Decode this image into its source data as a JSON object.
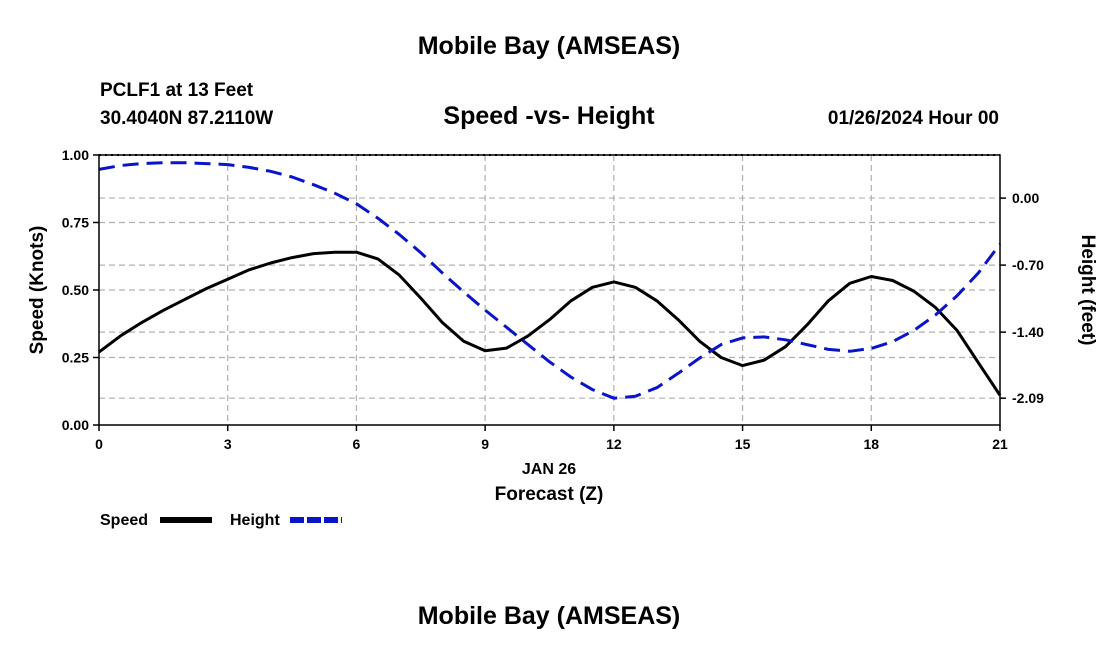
{
  "page": {
    "title": "Mobile Bay (AMSEAS)",
    "station_line1": "PCLF1 at 13 Feet",
    "station_line2": "30.4040N  87.2110W",
    "chart_title": "Speed -vs- Height",
    "timestamp": "01/26/2024 Hour 00",
    "date_label": "JAN 26",
    "footer_title": "Mobile Bay (AMSEAS)"
  },
  "legend": {
    "speed_label": "Speed",
    "height_label": "Height"
  },
  "colors": {
    "speed": "#000000",
    "height": "#0a14c8",
    "grid": "#b0b0b0"
  },
  "chart_data": {
    "type": "line",
    "title": "Speed -vs- Height",
    "xlabel": "Forecast (Z)",
    "ylabel": "Speed (Knots)",
    "y2label": "Height (feet)",
    "xlim": [
      0,
      21
    ],
    "ylim": [
      0,
      1.0
    ],
    "y2lim": [
      -2.37,
      0.45
    ],
    "x_ticks": [
      0,
      3,
      6,
      9,
      12,
      15,
      18,
      21
    ],
    "y_ticks": [
      "0.00",
      "0.25",
      "0.50",
      "0.75",
      "1.00"
    ],
    "y2_ticks": [
      "0.00",
      "-0.70",
      "-1.40",
      "-2.09"
    ],
    "grid": true,
    "legend_position": "bottom-left",
    "series": [
      {
        "name": "Speed",
        "axis": "left",
        "style": "solid",
        "x": [
          0,
          0.5,
          1,
          1.5,
          2,
          2.5,
          3,
          3.5,
          4,
          4.5,
          5,
          5.5,
          6,
          6.5,
          7,
          7.5,
          8,
          8.5,
          9,
          9.5,
          10,
          10.5,
          11,
          11.5,
          12,
          12.5,
          13,
          13.5,
          14,
          14.5,
          15,
          15.5,
          16,
          16.5,
          17,
          17.5,
          18,
          18.5,
          19,
          19.5,
          20,
          20.5,
          21
        ],
        "values": [
          0.27,
          0.33,
          0.38,
          0.425,
          0.465,
          0.505,
          0.54,
          0.575,
          0.6,
          0.62,
          0.635,
          0.64,
          0.64,
          0.615,
          0.555,
          0.47,
          0.38,
          0.31,
          0.275,
          0.285,
          0.33,
          0.39,
          0.46,
          0.51,
          0.53,
          0.51,
          0.46,
          0.39,
          0.31,
          0.25,
          0.22,
          0.24,
          0.29,
          0.37,
          0.46,
          0.525,
          0.55,
          0.535,
          0.495,
          0.435,
          0.35,
          0.23,
          0.11
        ]
      },
      {
        "name": "Height",
        "axis": "right",
        "style": "dashed",
        "x": [
          0,
          0.5,
          1,
          1.5,
          2,
          2.5,
          3,
          3.5,
          4,
          4.5,
          5,
          5.5,
          6,
          6.5,
          7,
          7.5,
          8,
          8.5,
          9,
          9.5,
          10,
          10.5,
          11,
          11.5,
          12,
          12.5,
          13,
          13.5,
          14,
          14.5,
          15,
          15.5,
          16,
          16.5,
          17,
          17.5,
          18,
          18.5,
          19,
          19.5,
          20,
          20.5,
          21
        ],
        "values": [
          0.3,
          0.34,
          0.36,
          0.37,
          0.37,
          0.36,
          0.35,
          0.32,
          0.28,
          0.22,
          0.14,
          0.05,
          -0.06,
          -0.21,
          -0.38,
          -0.57,
          -0.78,
          -0.98,
          -1.17,
          -1.35,
          -1.53,
          -1.71,
          -1.87,
          -2.0,
          -2.09,
          -2.07,
          -1.98,
          -1.83,
          -1.67,
          -1.53,
          -1.46,
          -1.45,
          -1.48,
          -1.53,
          -1.58,
          -1.6,
          -1.57,
          -1.5,
          -1.38,
          -1.22,
          -1.02,
          -0.78,
          -0.48
        ]
      }
    ]
  }
}
